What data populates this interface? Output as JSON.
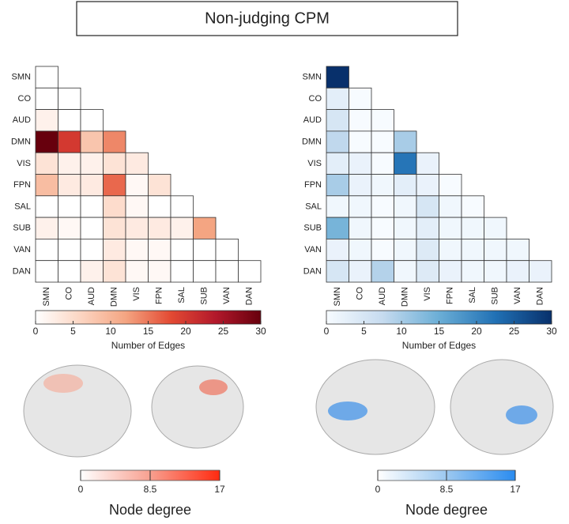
{
  "figure_title": "Non-judging CPM",
  "chart_data": [
    {
      "type": "heatmap",
      "categories": [
        "SMN",
        "CO",
        "AUD",
        "DMN",
        "VIS",
        "FPN",
        "SAL",
        "SUB",
        "VAN",
        "DAN"
      ],
      "values": [
        [
          0
        ],
        [
          0,
          0
        ],
        [
          2,
          0,
          0
        ],
        [
          30,
          20,
          8,
          14
        ],
        [
          4,
          2,
          2,
          4,
          3
        ],
        [
          9,
          3,
          3,
          16,
          1,
          4
        ],
        [
          0,
          0,
          0,
          5,
          1,
          0,
          0
        ],
        [
          2,
          1,
          0,
          4,
          3,
          3,
          2,
          12
        ],
        [
          0,
          0,
          0,
          3,
          1,
          1,
          0,
          0,
          0
        ],
        [
          0,
          0,
          2,
          4,
          1,
          1,
          0,
          0,
          0,
          0
        ]
      ],
      "colormap": [
        "#ffffff",
        "#fcd5c2",
        "#f4a582",
        "#e34a33",
        "#b2182b",
        "#67000d"
      ],
      "clim": [
        0,
        30
      ],
      "cticks": [
        0,
        5,
        10,
        15,
        20,
        25,
        30
      ],
      "colorbar_label": "Number of Edges",
      "node_degree": {
        "label": "Node degree",
        "lim": [
          0,
          17
        ],
        "ticks": [
          0,
          8.5,
          17
        ],
        "colormap": [
          "#ffffff",
          "#f8a090",
          "#ff2a10"
        ]
      }
    },
    {
      "type": "heatmap",
      "categories": [
        "SMN",
        "CO",
        "AUD",
        "DMN",
        "VIS",
        "FPN",
        "SAL",
        "SUB",
        "VAN",
        "DAN"
      ],
      "values": [
        [
          30
        ],
        [
          3,
          0
        ],
        [
          5,
          0,
          0
        ],
        [
          8,
          0,
          0,
          10
        ],
        [
          3,
          2,
          0,
          22,
          2
        ],
        [
          10,
          2,
          1,
          3,
          2,
          0
        ],
        [
          1,
          1,
          0,
          1,
          5,
          1,
          0
        ],
        [
          14,
          1,
          0,
          1,
          3,
          1,
          1,
          1
        ],
        [
          2,
          1,
          0,
          1,
          4,
          1,
          1,
          1,
          1
        ],
        [
          5,
          2,
          9,
          1,
          4,
          2,
          1,
          1,
          2,
          2
        ]
      ],
      "colormap": [
        "#f7fbff",
        "#c6dbef",
        "#6baed6",
        "#2171b5",
        "#08306b"
      ],
      "clim": [
        0,
        30
      ],
      "cticks": [
        0,
        5,
        10,
        15,
        20,
        25,
        30
      ],
      "colorbar_label": "Number of Edges",
      "node_degree": {
        "label": "Node degree",
        "lim": [
          0,
          17
        ],
        "ticks": [
          0,
          8.5,
          17
        ],
        "colormap": [
          "#ffffff",
          "#9cc8f0",
          "#2a8cf0"
        ]
      }
    }
  ]
}
